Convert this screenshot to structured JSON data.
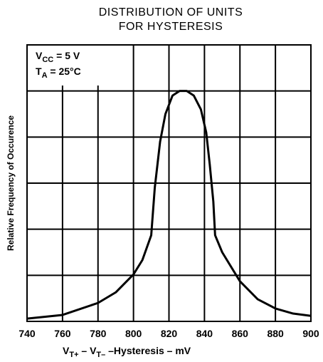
{
  "chart_data": {
    "type": "line",
    "title": [
      "DISTRIBUTION OF UNITS",
      "FOR HYSTERESIS"
    ],
    "y_label": "Relative Frequency of Occurence",
    "x_label": [
      {
        "text": "V"
      },
      {
        "text": "T+",
        "sub": true
      },
      {
        "text": " – V"
      },
      {
        "text": "T–",
        "sub": true
      },
      {
        "text": " –Hysteresis – mV"
      }
    ],
    "annotations": [
      [
        {
          "text": "V"
        },
        {
          "text": "CC",
          "sub": true
        },
        {
          "text": " = 5 V"
        }
      ],
      [
        {
          "text": "T"
        },
        {
          "text": "A",
          "sub": true
        },
        {
          "text": " = 25°C"
        }
      ]
    ],
    "x": [
      740,
      760,
      780,
      790,
      800,
      805,
      810,
      812,
      815,
      818,
      822,
      826,
      830,
      834,
      838,
      841,
      843,
      845,
      846,
      850,
      860,
      870,
      880,
      890,
      900
    ],
    "series": [
      {
        "color": "#000000",
        "values": [
          0.06,
          0.14,
          0.4,
          0.63,
          1.02,
          1.33,
          1.87,
          2.9,
          3.9,
          4.5,
          4.9,
          5.0,
          5.0,
          4.9,
          4.6,
          4.1,
          3.4,
          2.6,
          1.87,
          1.5,
          0.87,
          0.48,
          0.28,
          0.17,
          0.12
        ]
      }
    ],
    "xlim": [
      740,
      900
    ],
    "xticks": [
      740,
      760,
      780,
      800,
      820,
      840,
      860,
      880,
      900
    ],
    "ylim": [
      0,
      6
    ],
    "grid": true
  }
}
